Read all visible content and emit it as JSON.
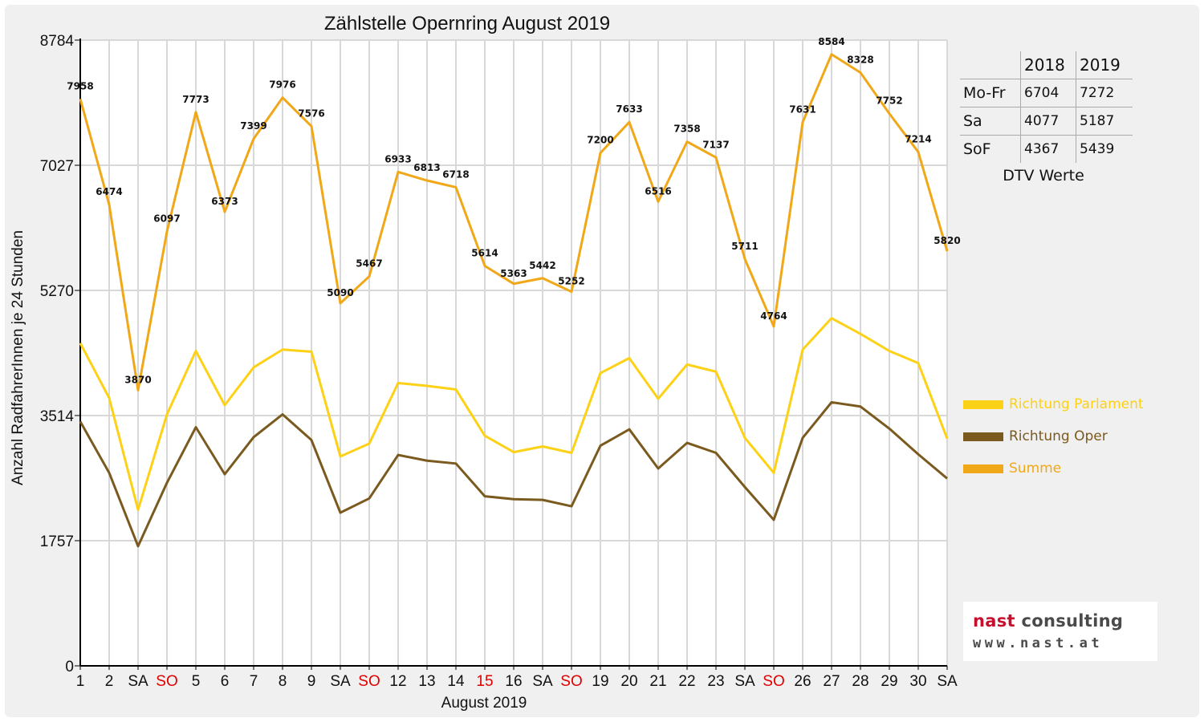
{
  "chart_data": {
    "type": "line",
    "title": "Zählstelle Opernring August 2019",
    "xlabel": "August 2019",
    "ylabel": "Anzahl RadfahrerInnen je 24 Stunden",
    "ylim": [
      0,
      8784
    ],
    "yticks": [
      0,
      1757,
      3514,
      5270,
      7027,
      8784
    ],
    "grid": true,
    "legend_position": "right",
    "categories": [
      "1",
      "2",
      "SA",
      "SO",
      "5",
      "6",
      "7",
      "8",
      "9",
      "SA",
      "SO",
      "12",
      "13",
      "14",
      "15",
      "16",
      "SA",
      "SO",
      "19",
      "20",
      "21",
      "22",
      "23",
      "SA",
      "SO",
      "26",
      "27",
      "28",
      "29",
      "30",
      "SA"
    ],
    "highlighted_categories": [
      3,
      10,
      14,
      17,
      24
    ],
    "series": [
      {
        "name": "Richtung Parlament",
        "color": "#fcd116",
        "values": [
          4530,
          3760,
          2190,
          3530,
          4420,
          3660,
          4190,
          4440,
          4410,
          2940,
          3120,
          3970,
          3930,
          3880,
          3230,
          3000,
          3080,
          2990,
          4110,
          4320,
          3750,
          4230,
          4130,
          3200,
          2710,
          4440,
          4880,
          4660,
          4420,
          4250,
          3190
        ]
      },
      {
        "name": "Richtung Oper",
        "color": "#7a5a1e",
        "values": [
          3430,
          2710,
          1680,
          2570,
          3350,
          2690,
          3210,
          3530,
          3170,
          2150,
          2350,
          2960,
          2880,
          2840,
          2380,
          2340,
          2330,
          2240,
          3090,
          3320,
          2770,
          3130,
          2990,
          2510,
          2050,
          3200,
          3700,
          3640,
          3330,
          2970,
          2630
        ]
      },
      {
        "name": "Summe",
        "color": "#f0a818",
        "values": [
          7958,
          6474,
          3870,
          6097,
          7773,
          6373,
          7399,
          7976,
          7576,
          5090,
          5467,
          6933,
          6813,
          6718,
          5614,
          5363,
          5442,
          5252,
          7200,
          7633,
          6516,
          7358,
          7137,
          5711,
          4764,
          7631,
          8584,
          8328,
          7752,
          7214,
          5820
        ]
      }
    ],
    "data_labels_series": "Summe"
  },
  "dtv_table": {
    "header": [
      "",
      "2018",
      "2019"
    ],
    "rows": [
      [
        "Mo-Fr",
        "6704",
        "7272"
      ],
      [
        "Sa",
        "4077",
        "5187"
      ],
      [
        "SoF",
        "4367",
        "5439"
      ]
    ],
    "caption": "DTV Werte"
  },
  "legend": [
    {
      "label": "Richtung Parlament",
      "color": "#fcd116"
    },
    {
      "label": "Richtung Oper",
      "color": "#7a5a1e"
    },
    {
      "label": "Summe",
      "color": "#f0a818"
    }
  ],
  "colors": {
    "holiday_label": "#e00000",
    "axis": "#000000",
    "grid": "#d8d8d8"
  },
  "logo": {
    "brand_red": "nast",
    "brand_grey": " consulting",
    "url": "www.nast.at"
  }
}
